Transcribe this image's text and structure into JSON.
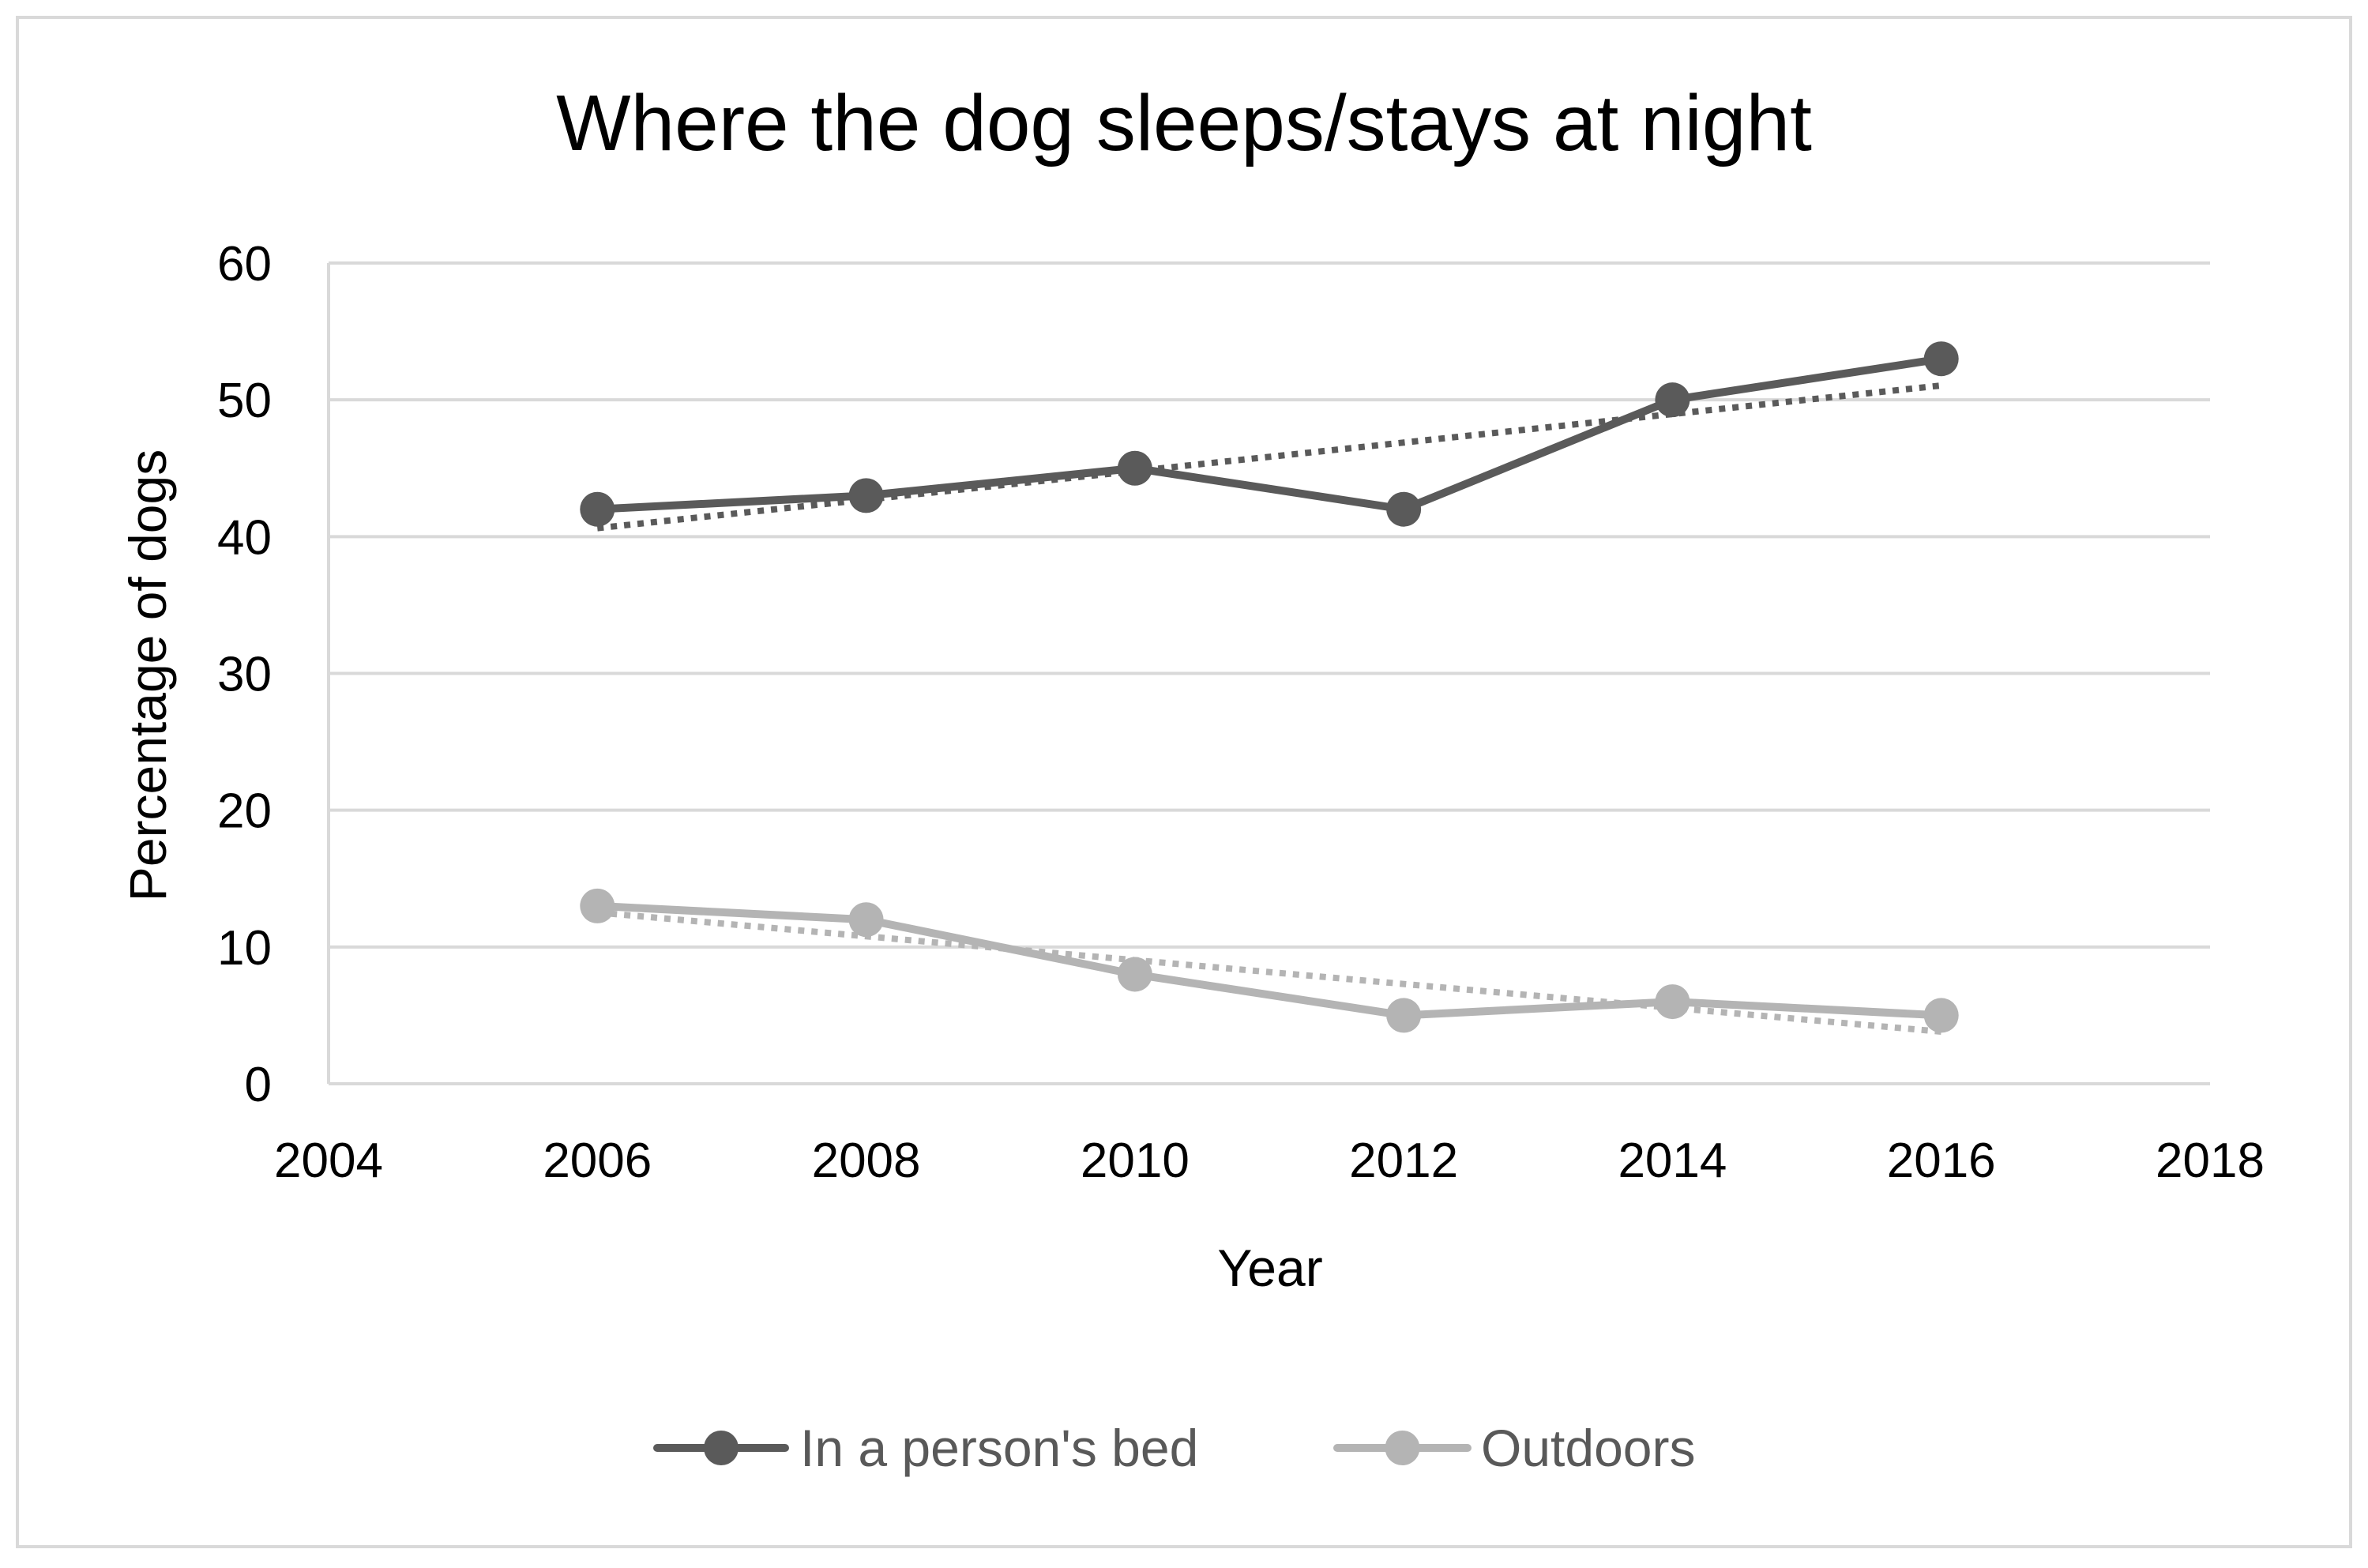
{
  "chart_data": {
    "type": "line",
    "title": "Where the dog sleeps/stays at night",
    "xlabel": "Year",
    "ylabel": "Percentage of dogs",
    "xlim": [
      2004,
      2018
    ],
    "ylim": [
      0,
      60
    ],
    "x_ticks": [
      2004,
      2006,
      2008,
      2010,
      2012,
      2014,
      2016,
      2018
    ],
    "y_ticks": [
      0,
      10,
      20,
      30,
      40,
      50,
      60
    ],
    "grid": "horizontal",
    "legend_position": "bottom",
    "x": [
      2006,
      2008,
      2010,
      2012,
      2014,
      2016
    ],
    "series": [
      {
        "name": "In a person's bed",
        "values": [
          42,
          43,
          45,
          42,
          50,
          53
        ],
        "color": "#5a5a5a",
        "trendline": "linear, dotted"
      },
      {
        "name": "Outdoors",
        "values": [
          13,
          12,
          8,
          5,
          6,
          5
        ],
        "color": "#b4b4b4",
        "trendline": "linear, dotted"
      }
    ]
  }
}
